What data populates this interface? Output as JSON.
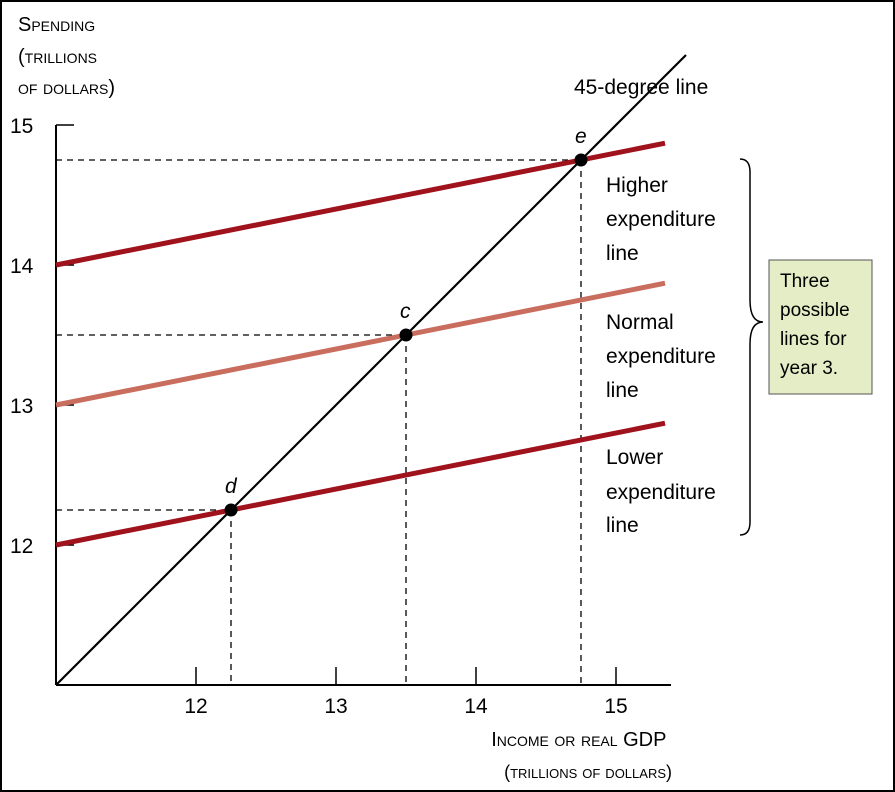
{
  "chart_data": {
    "type": "line",
    "ylabel_lines": [
      "Spending",
      "(trillions",
      "of dollars)"
    ],
    "xlabel_lines": [
      "Income or real GDP",
      "(trillions of dollars)"
    ],
    "xlim": [
      11,
      15.4
    ],
    "ylim": [
      11,
      15
    ],
    "x_ticks": [
      12,
      13,
      14,
      15
    ],
    "y_ticks": [
      12,
      13,
      14,
      15
    ],
    "x_tick_labels": [
      "12",
      "13",
      "14",
      "15"
    ],
    "y_tick_labels": [
      "12",
      "13",
      "14",
      "15"
    ],
    "series": [
      {
        "name": "45-degree line",
        "color": "#000000",
        "x": [
          11,
          15.5
        ],
        "y": [
          11,
          15.5
        ]
      },
      {
        "name": "Higher expenditure line",
        "color": "#a0121c",
        "x": [
          11,
          15.35
        ],
        "y": [
          14.0,
          14.87
        ]
      },
      {
        "name": "Normal expenditure line",
        "color": "#c96e5e",
        "x": [
          11,
          15.35
        ],
        "y": [
          13.0,
          13.87
        ]
      },
      {
        "name": "Lower expenditure line",
        "color": "#a0121c",
        "x": [
          11,
          15.35
        ],
        "y": [
          12.0,
          12.87
        ]
      }
    ],
    "points": [
      {
        "label": "e",
        "x": 14.75,
        "y": 14.75
      },
      {
        "label": "c",
        "x": 13.5,
        "y": 13.5
      },
      {
        "label": "d",
        "x": 12.25,
        "y": 12.25
      }
    ],
    "line_labels": {
      "forty_five": "45-degree line",
      "higher": [
        "Higher",
        "expenditure",
        "line"
      ],
      "normal": [
        "Normal",
        "expenditure",
        "line"
      ],
      "lower": [
        "Lower",
        "expenditure",
        "line"
      ]
    },
    "callout": {
      "lines": [
        "Three",
        "possible",
        "lines for",
        "year 3."
      ],
      "fill": "#e4edc5"
    }
  }
}
